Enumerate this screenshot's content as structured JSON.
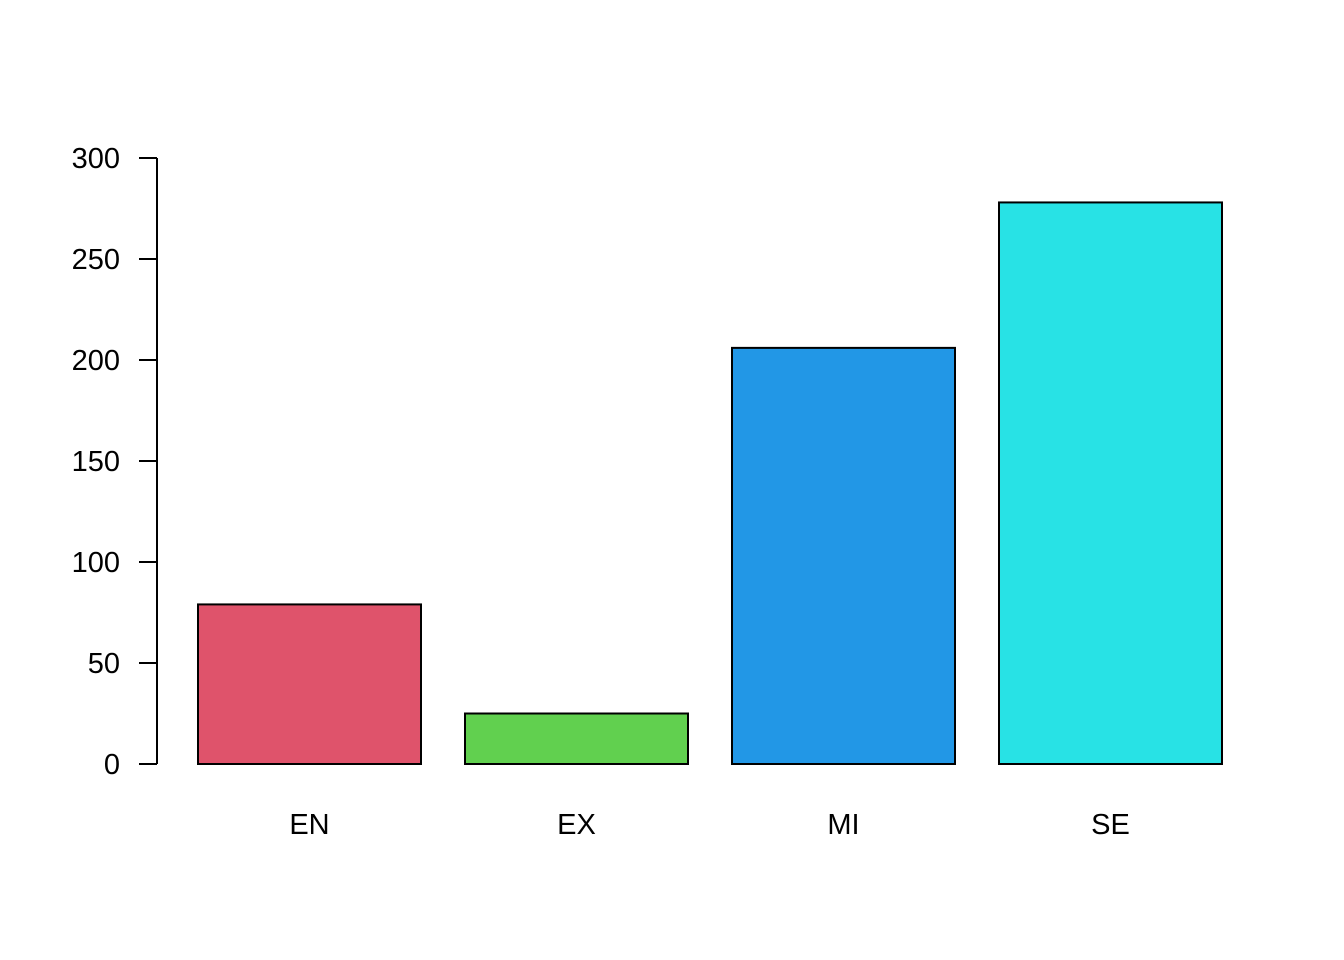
{
  "chart_data": {
    "type": "bar",
    "title": "",
    "xlabel": "",
    "ylabel": "",
    "categories": [
      "EN",
      "EX",
      "MI",
      "SE"
    ],
    "values": [
      79,
      25,
      206,
      278
    ],
    "colors": [
      "#DF536B",
      "#61D04F",
      "#2297E6",
      "#28E2E5"
    ],
    "ylim": [
      0,
      300
    ],
    "yticks": [
      0,
      50,
      100,
      150,
      200,
      250,
      300
    ],
    "ytick_labels": [
      "0",
      "50",
      "100",
      "150",
      "200",
      "250",
      "300"
    ],
    "grid": false,
    "legend": "none"
  }
}
